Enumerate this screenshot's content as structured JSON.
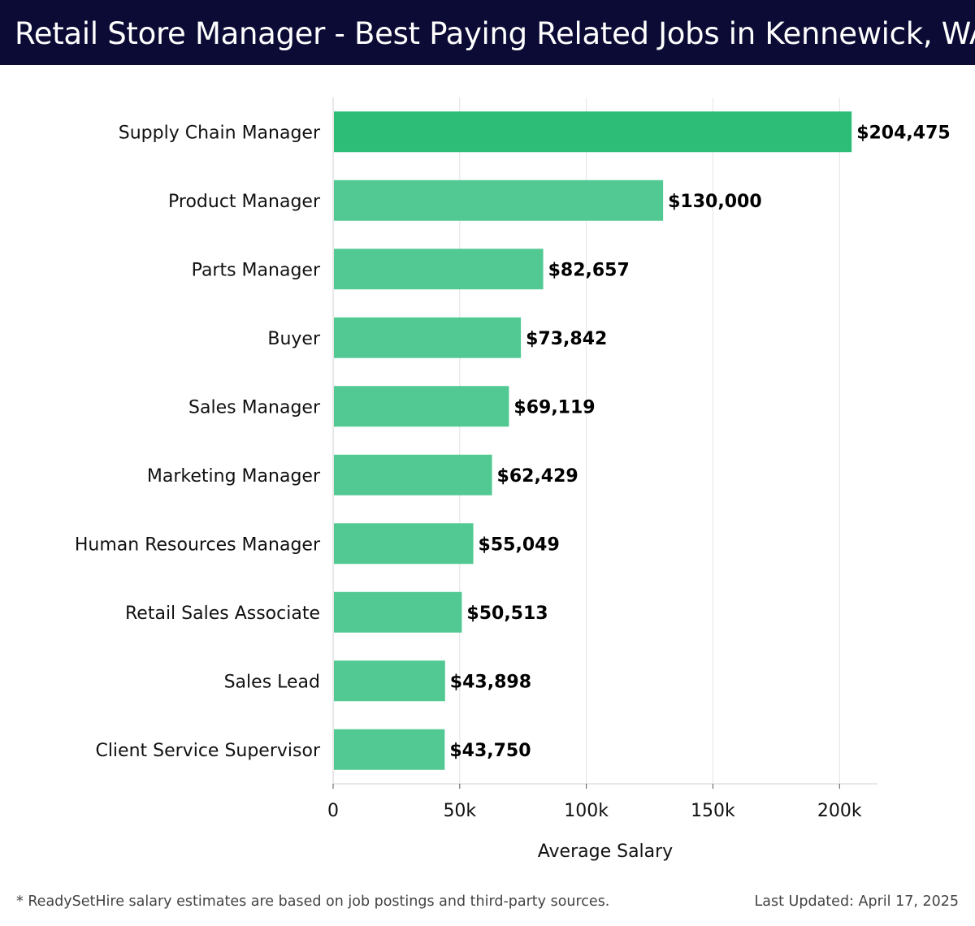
{
  "header": {
    "title": "Retail Store Manager - Best Paying Related Jobs in Kennewick, WA"
  },
  "footer": {
    "note": "* ReadySetHire salary estimates are based on job postings and third-party sources.",
    "updated": "Last Updated: April 17, 2025"
  },
  "colors": {
    "header_bg": "#0b0b35",
    "bar_top": "#2ebd76",
    "bar": "#52c993",
    "grid": "#e2e2e2"
  },
  "chart_data": {
    "type": "bar",
    "orientation": "horizontal",
    "title": "Retail Store Manager - Best Paying Related Jobs in Kennewick, WA",
    "xlabel": "Average Salary",
    "ylabel": "",
    "xlim": [
      0,
      215000
    ],
    "xticks": [
      0,
      50000,
      100000,
      150000,
      200000
    ],
    "xtick_labels": [
      "0",
      "50k",
      "100k",
      "150k",
      "200k"
    ],
    "grid": true,
    "categories": [
      "Supply Chain Manager",
      "Product Manager",
      "Parts Manager",
      "Buyer",
      "Sales Manager",
      "Marketing Manager",
      "Human Resources Manager",
      "Retail Sales Associate",
      "Sales Lead",
      "Client Service Supervisor"
    ],
    "values": [
      204475,
      130000,
      82657,
      73842,
      69119,
      62429,
      55049,
      50513,
      43898,
      43750
    ],
    "value_labels": [
      "$204,475",
      "$130,000",
      "$82,657",
      "$73,842",
      "$69,119",
      "$62,429",
      "$55,049",
      "$50,513",
      "$43,898",
      "$43,750"
    ]
  }
}
